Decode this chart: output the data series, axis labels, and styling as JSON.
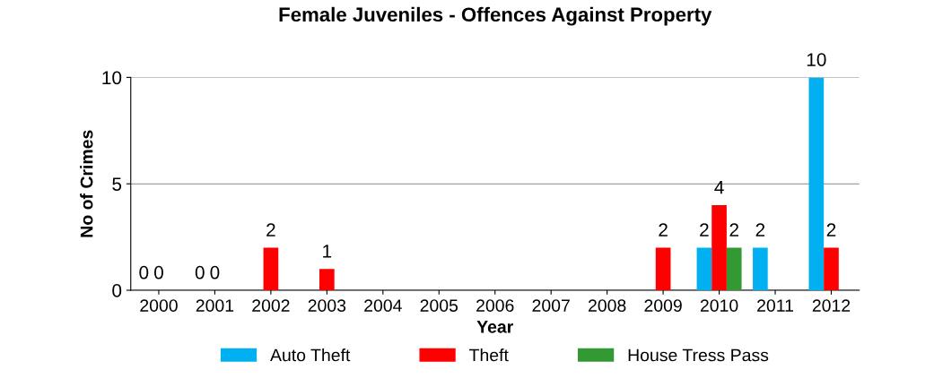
{
  "chart_data": {
    "type": "bar",
    "title": "Female Juveniles - Offences Against Property",
    "xlabel": "Year",
    "ylabel": "No of Crimes",
    "categories": [
      "2000",
      "2001",
      "2002",
      "2003",
      "2004",
      "2005",
      "2006",
      "2007",
      "2008",
      "2009",
      "2010",
      "2011",
      "2012"
    ],
    "series": [
      {
        "name": "Auto Theft",
        "color": "#00b0f0",
        "values": [
          0,
          0,
          null,
          null,
          null,
          null,
          null,
          null,
          null,
          null,
          2,
          2,
          10
        ]
      },
      {
        "name": "Theft",
        "color": "#ff0000",
        "values": [
          0,
          0,
          2,
          1,
          null,
          null,
          null,
          null,
          null,
          2,
          4,
          null,
          2
        ]
      },
      {
        "name": "House Tress Pass",
        "color": "#339933",
        "values": [
          null,
          null,
          null,
          null,
          null,
          null,
          null,
          null,
          null,
          null,
          2,
          null,
          null
        ]
      }
    ],
    "ylim": [
      0,
      10
    ],
    "yticks": [
      0,
      5,
      10
    ],
    "grid": "y",
    "legend": "bottom",
    "data_labels": true
  }
}
